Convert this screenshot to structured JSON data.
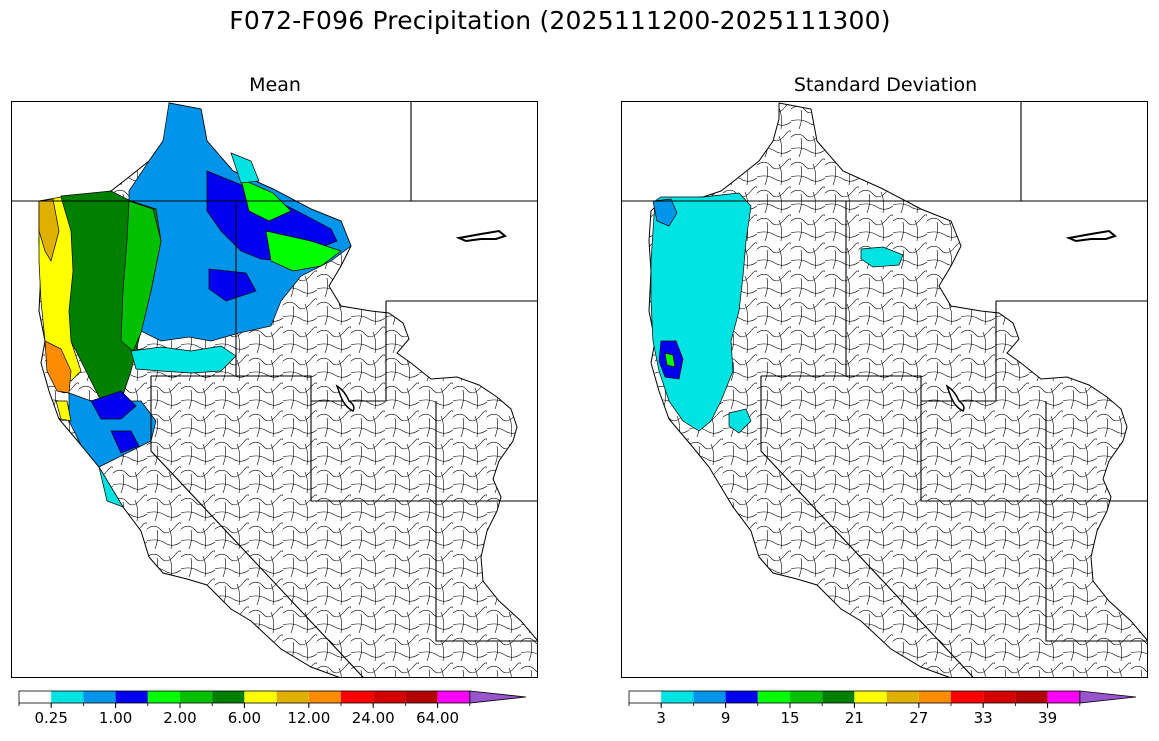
{
  "title": "F072-F096 Precipitation (2025111200-2025111300)",
  "panels": [
    {
      "id": "mean",
      "title": "Mean"
    },
    {
      "id": "std",
      "title": "Standard Deviation"
    }
  ],
  "colors": {
    "palette": [
      "#ffffff",
      "#00e3e3",
      "#0095ea",
      "#0000f0",
      "#00ff00",
      "#00c000",
      "#008000",
      "#ffff00",
      "#e0b000",
      "#ff8c00",
      "#ff0000",
      "#d40000",
      "#b40000",
      "#ff00ff",
      "#9955cc"
    ],
    "boundary": "#000000",
    "basin": "#000000"
  },
  "colorbars": {
    "mean": {
      "ticks": [
        "0.25",
        "1.00",
        "2.00",
        "6.00",
        "12.00",
        "24.00",
        "64.00"
      ],
      "tick_positions": [
        1,
        3,
        5,
        7,
        9,
        11,
        13
      ],
      "extend": "max"
    },
    "std": {
      "ticks": [
        "3",
        "9",
        "15",
        "21",
        "27",
        "33",
        "39"
      ],
      "tick_positions": [
        1,
        3,
        5,
        7,
        9,
        11,
        13
      ],
      "extend": "max"
    }
  },
  "mean_field": [
    {
      "region": "British Columbia interior",
      "color_index": 2
    },
    {
      "region": "Columbia basin north",
      "color_index": 3
    },
    {
      "region": "Puget Sound / Olympics",
      "color_index": 6
    },
    {
      "region": "Washington-Oregon Cascades",
      "color_index": 6
    },
    {
      "region": "Oregon coast",
      "color_index": 8
    },
    {
      "region": "Northern California coast",
      "color_index": 9
    },
    {
      "region": "Idaho panhandle",
      "color_index": 4
    },
    {
      "region": "Northern Sierra",
      "color_index": 3
    }
  ],
  "std_field": [
    {
      "region": "Pacific Northwest",
      "color_index": 1
    },
    {
      "region": "Olympic Peninsula",
      "color_index": 2
    },
    {
      "region": "Northern California coast",
      "color_index": 3
    },
    {
      "region": "Western Montana",
      "color_index": 1
    }
  ]
}
